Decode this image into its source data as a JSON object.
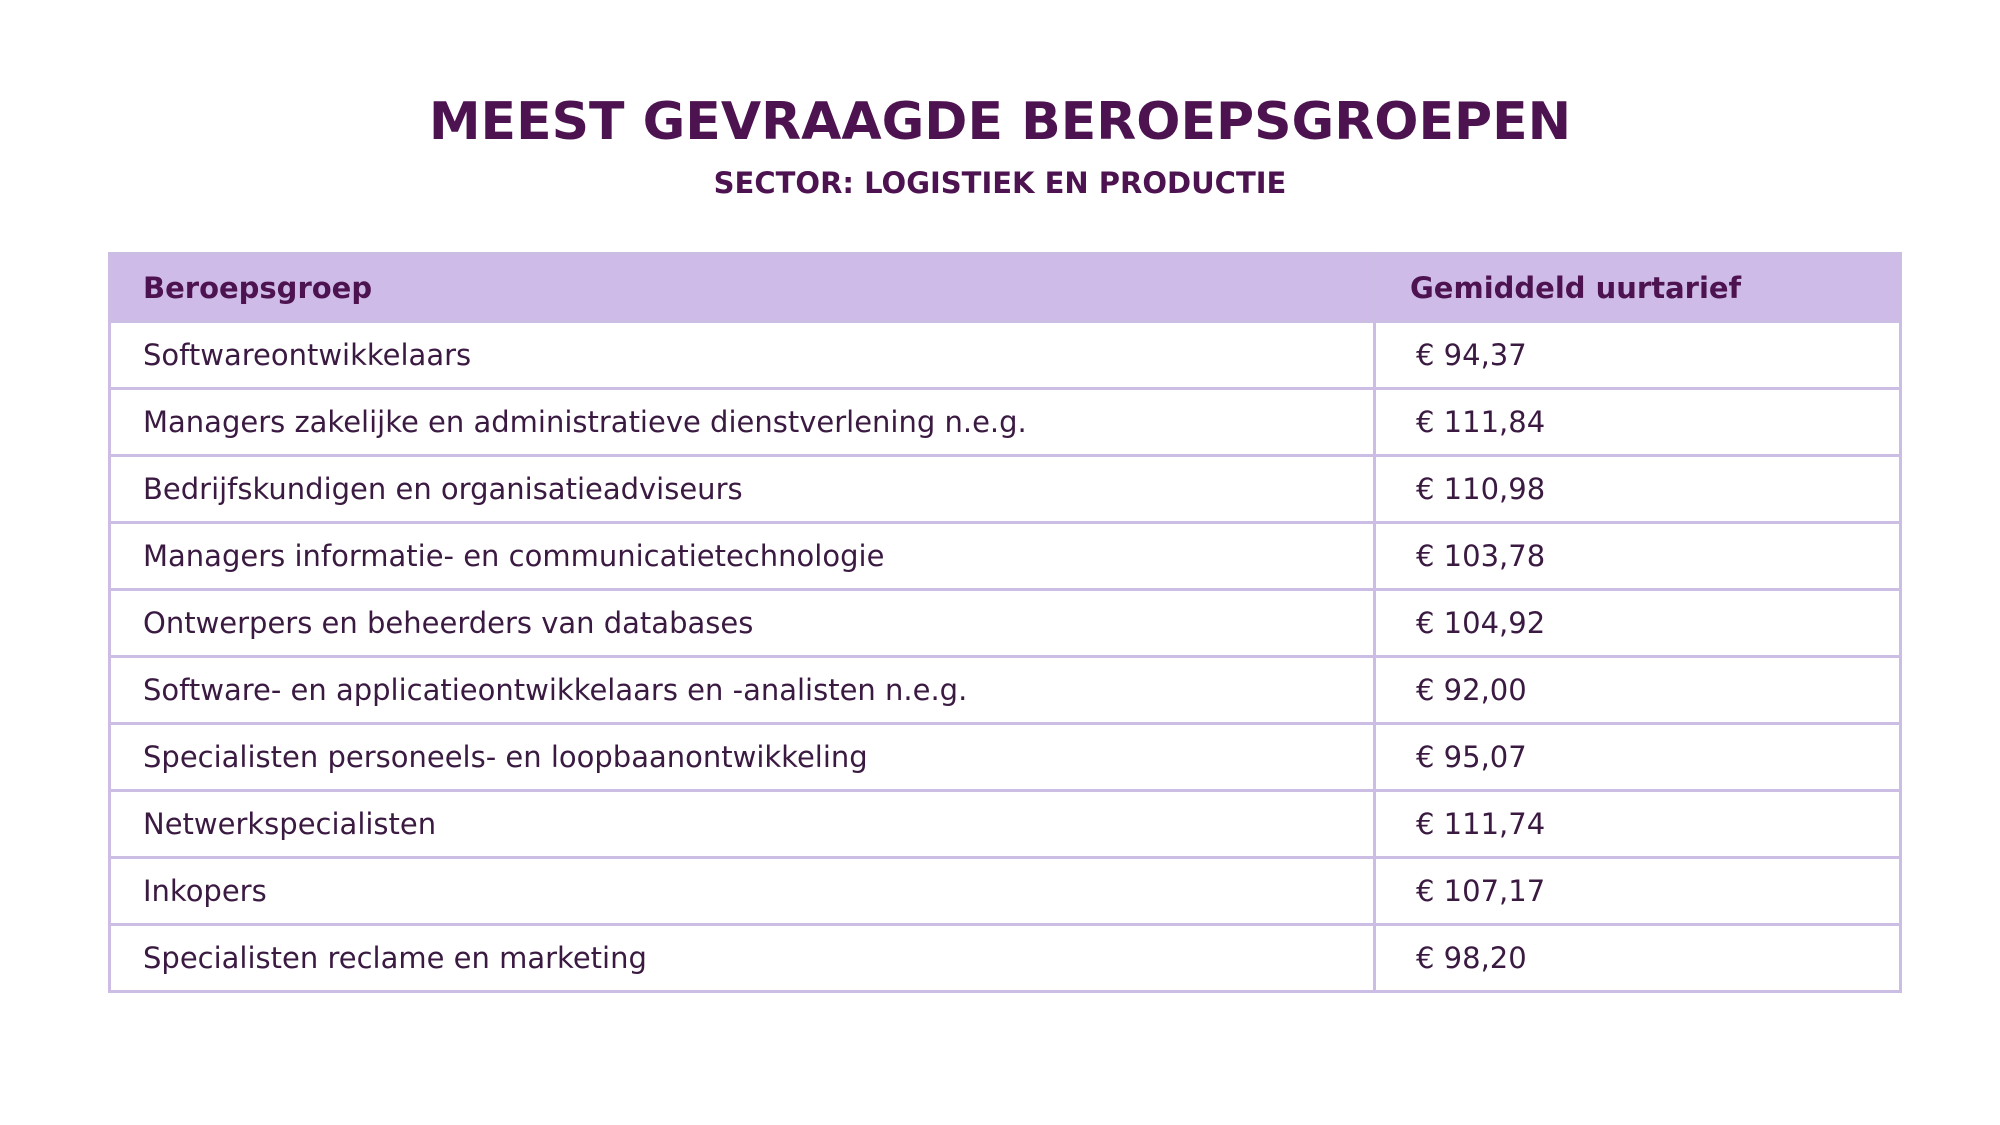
{
  "header": {
    "title": "MEEST GEVRAAGDE BEROEPSGROEPEN",
    "subtitle": "SECTOR: LOGISTIEK EN PRODUCTIE"
  },
  "table": {
    "columns": [
      "Beroepsgroep",
      "Gemiddeld uurtarief"
    ],
    "rows": [
      [
        "Softwareontwikkelaars",
        "€ 94,37"
      ],
      [
        "Managers zakelijke en administratieve dienstverlening n.e.g.",
        "€ 111,84"
      ],
      [
        "Bedrijfskundigen en organisatieadviseurs",
        "€ 110,98"
      ],
      [
        "Managers informatie- en communicatietechnologie",
        "€ 103,78"
      ],
      [
        "Ontwerpers en beheerders van databases",
        "€ 104,92"
      ],
      [
        "Software- en applicatieontwikkelaars en -analisten n.e.g.",
        "€ 92,00"
      ],
      [
        "Specialisten personeels- en loopbaanontwikkeling",
        "€ 95,07"
      ],
      [
        "Netwerkspecialisten",
        "€ 111,74"
      ],
      [
        "Inkopers",
        "€ 107,17"
      ],
      [
        "Specialisten reclame en marketing",
        "€ 98,20"
      ]
    ]
  }
}
